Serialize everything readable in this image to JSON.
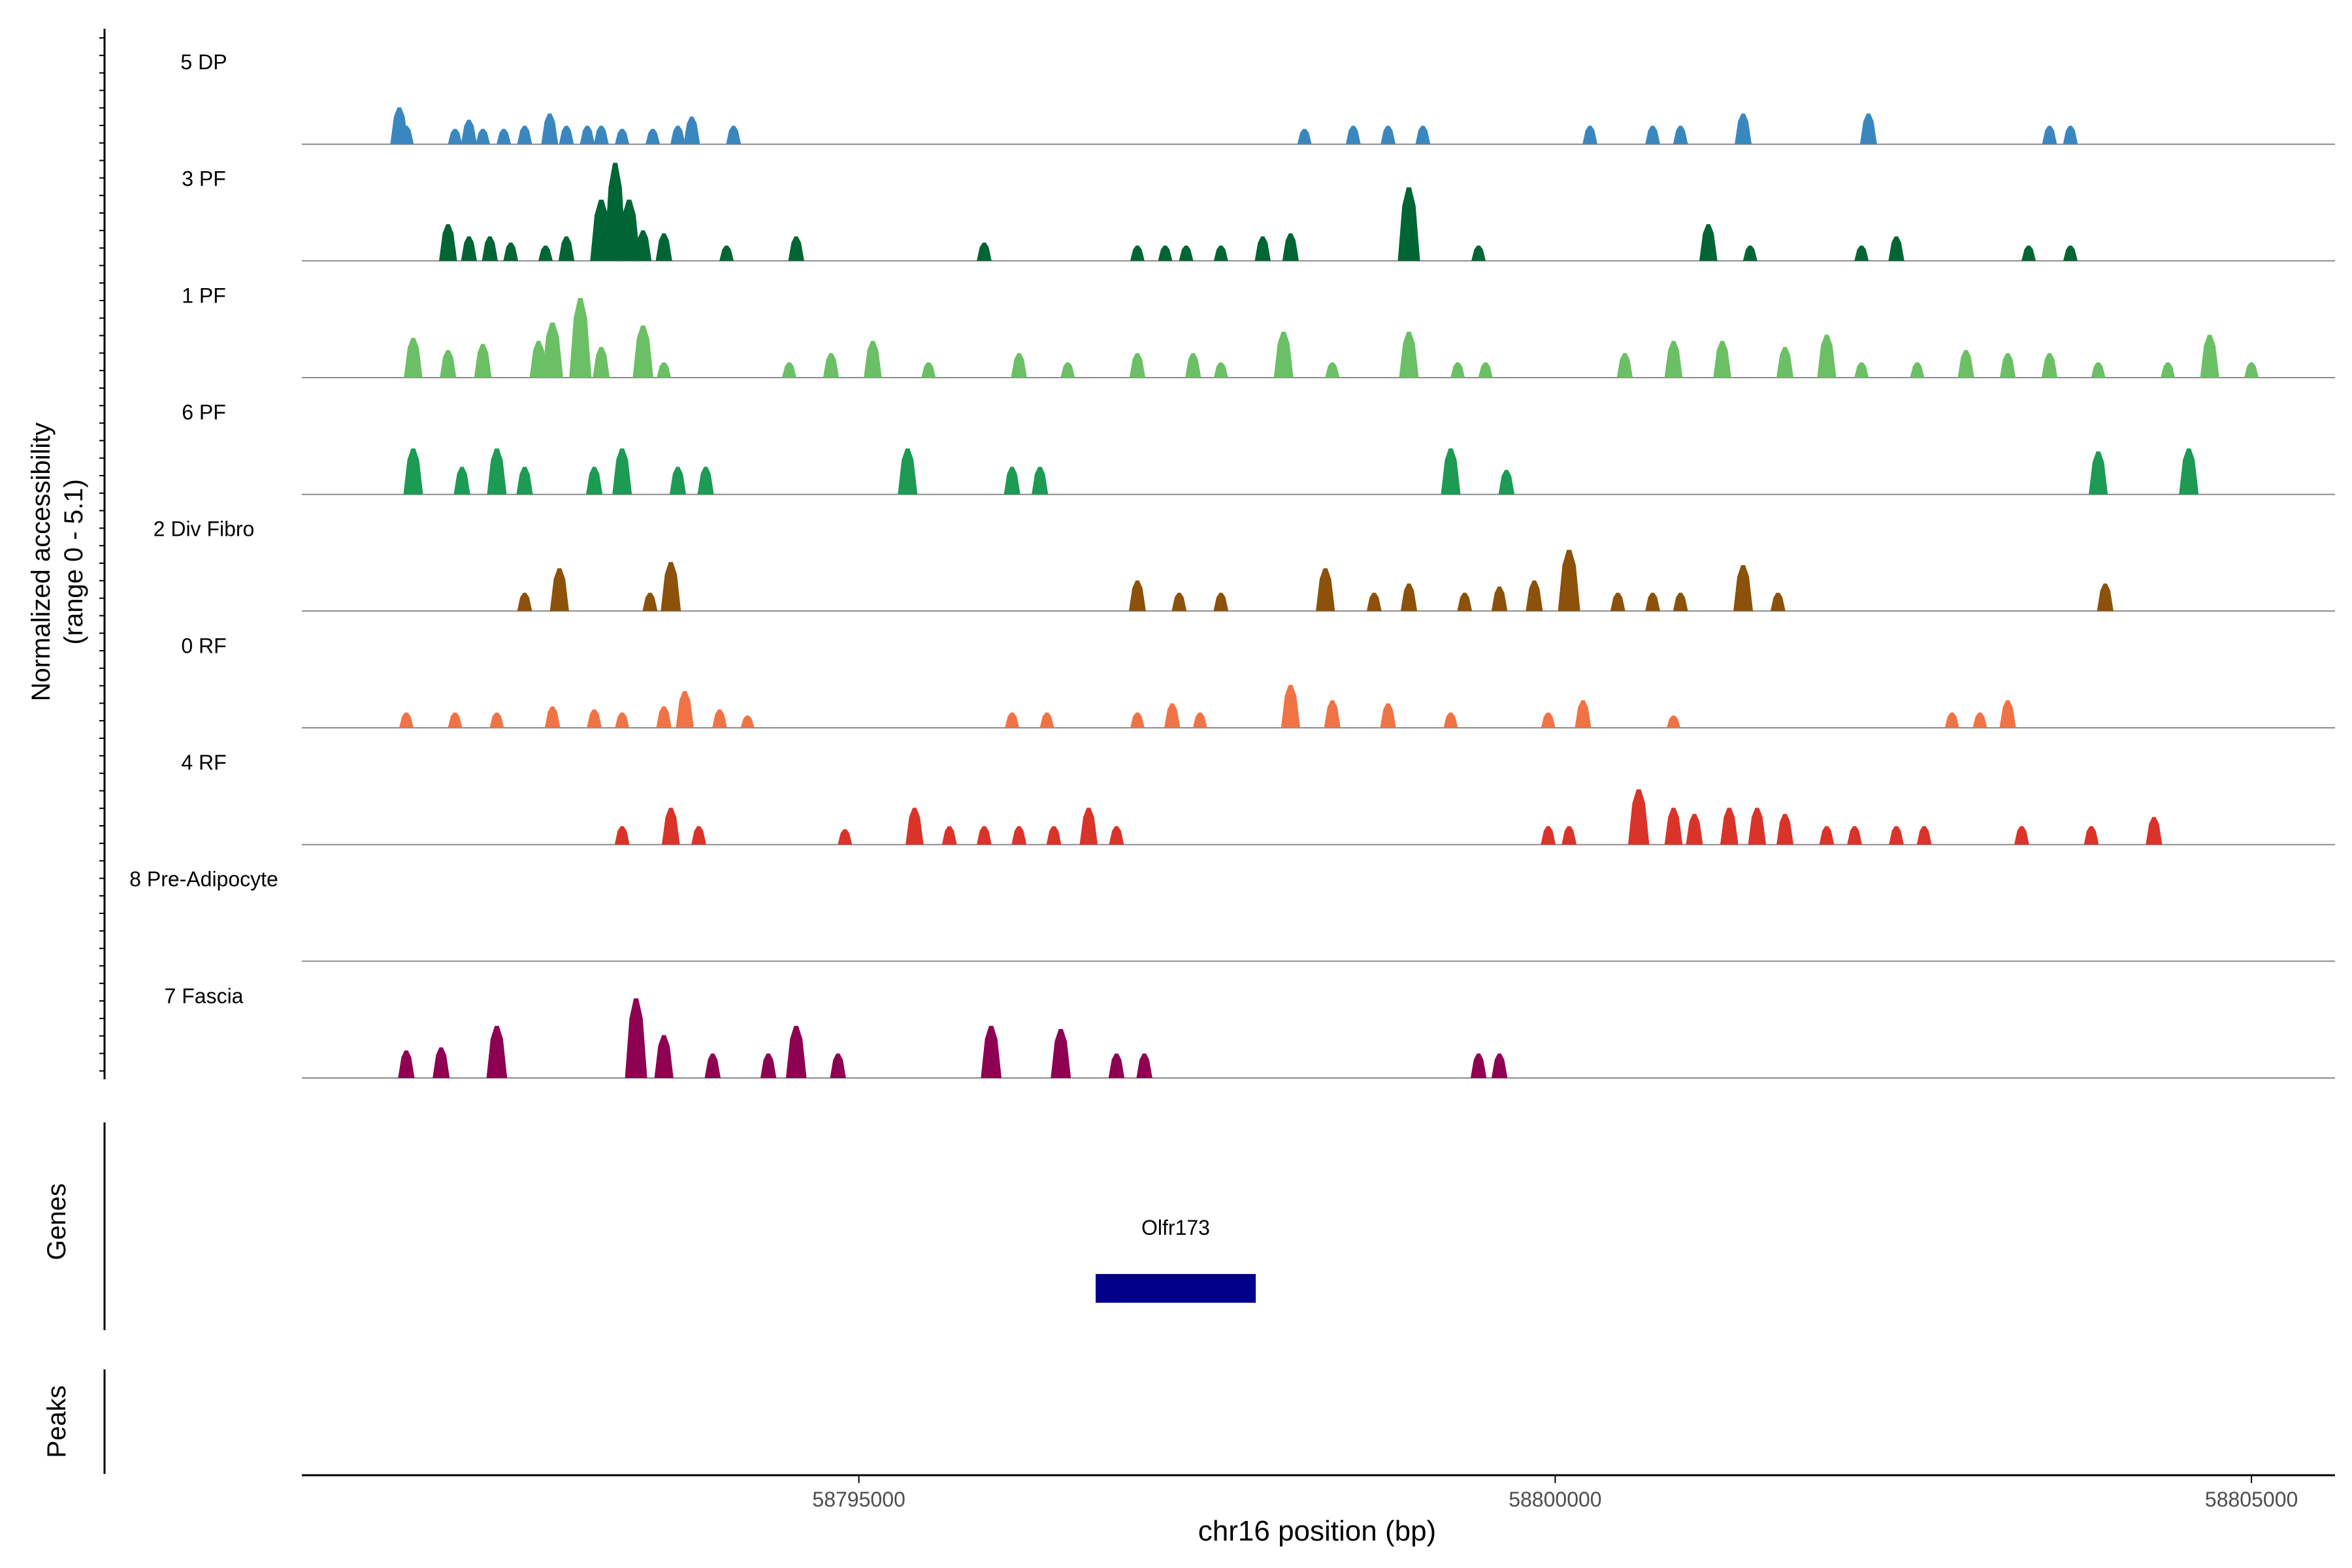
{
  "chart_data": {
    "type": "area",
    "title": "",
    "y_axis_title": "Normalized accessibility",
    "y_axis_subtitle": "(range 0 - 5.1)",
    "y_range": [
      0,
      5.1
    ],
    "genes_label": "Genes",
    "peaks_label": "Peaks",
    "x_axis": {
      "label": "chr16 position (bp)",
      "range": [
        58791000,
        58805600
      ],
      "ticks": [
        {
          "value": 58795000,
          "label": "58795000"
        },
        {
          "value": 58800000,
          "label": "58800000"
        },
        {
          "value": 58805000,
          "label": "58805000"
        }
      ]
    },
    "tracks": [
      {
        "name": "5 DP",
        "color": "#3a87c0",
        "peaks": [
          [
            58791700,
            1.2
          ],
          [
            58791750,
            0.6
          ],
          [
            58792100,
            0.5
          ],
          [
            58792200,
            0.8
          ],
          [
            58792300,
            0.5
          ],
          [
            58792450,
            0.5
          ],
          [
            58792600,
            0.6
          ],
          [
            58792780,
            1.0
          ],
          [
            58792900,
            0.6
          ],
          [
            58793050,
            0.6
          ],
          [
            58793150,
            0.6
          ],
          [
            58793300,
            0.5
          ],
          [
            58793520,
            0.5
          ],
          [
            58793700,
            0.6
          ],
          [
            58793800,
            0.9
          ],
          [
            58794100,
            0.6
          ],
          [
            58798200,
            0.5
          ],
          [
            58798550,
            0.6
          ],
          [
            58798800,
            0.6
          ],
          [
            58799050,
            0.6
          ],
          [
            58800250,
            0.6
          ],
          [
            58800700,
            0.6
          ],
          [
            58800900,
            0.6
          ],
          [
            58801350,
            1.0
          ],
          [
            58802250,
            1.0
          ],
          [
            58803550,
            0.6
          ],
          [
            58803700,
            0.6
          ]
        ]
      },
      {
        "name": "3 PF",
        "color": "#006534",
        "peaks": [
          [
            58792050,
            1.2
          ],
          [
            58792200,
            0.8
          ],
          [
            58792350,
            0.8
          ],
          [
            58792500,
            0.6
          ],
          [
            58792750,
            0.5
          ],
          [
            58792900,
            0.8
          ],
          [
            58793150,
            2.0
          ],
          [
            58793250,
            3.2
          ],
          [
            58793350,
            2.0
          ],
          [
            58793450,
            1.0
          ],
          [
            58793600,
            0.9
          ],
          [
            58794050,
            0.5
          ],
          [
            58794550,
            0.8
          ],
          [
            58795900,
            0.6
          ],
          [
            58797000,
            0.5
          ],
          [
            58797200,
            0.5
          ],
          [
            58797350,
            0.5
          ],
          [
            58797600,
            0.5
          ],
          [
            58797900,
            0.8
          ],
          [
            58798100,
            0.9
          ],
          [
            58798950,
            2.4
          ],
          [
            58799450,
            0.5
          ],
          [
            58801100,
            1.2
          ],
          [
            58801400,
            0.5
          ],
          [
            58802200,
            0.5
          ],
          [
            58802450,
            0.8
          ],
          [
            58803400,
            0.5
          ],
          [
            58803700,
            0.5
          ]
        ]
      },
      {
        "name": "1 PF",
        "color": "#6bbf65",
        "peaks": [
          [
            58791800,
            1.3
          ],
          [
            58792050,
            0.9
          ],
          [
            58792300,
            1.1
          ],
          [
            58792700,
            1.2
          ],
          [
            58792800,
            1.8
          ],
          [
            58793000,
            2.6
          ],
          [
            58793150,
            1.0
          ],
          [
            58793450,
            1.7
          ],
          [
            58793600,
            0.5
          ],
          [
            58794500,
            0.5
          ],
          [
            58794800,
            0.8
          ],
          [
            58795100,
            1.2
          ],
          [
            58795500,
            0.5
          ],
          [
            58796150,
            0.8
          ],
          [
            58796500,
            0.5
          ],
          [
            58797000,
            0.8
          ],
          [
            58797400,
            0.8
          ],
          [
            58797600,
            0.5
          ],
          [
            58798050,
            1.5
          ],
          [
            58798400,
            0.5
          ],
          [
            58798950,
            1.5
          ],
          [
            58799300,
            0.5
          ],
          [
            58799500,
            0.5
          ],
          [
            58800500,
            0.8
          ],
          [
            58800850,
            1.2
          ],
          [
            58801200,
            1.2
          ],
          [
            58801650,
            1.0
          ],
          [
            58801950,
            1.4
          ],
          [
            58802200,
            0.5
          ],
          [
            58802600,
            0.5
          ],
          [
            58802950,
            0.9
          ],
          [
            58803250,
            0.8
          ],
          [
            58803550,
            0.8
          ],
          [
            58803900,
            0.5
          ],
          [
            58804400,
            0.5
          ],
          [
            58804700,
            1.4
          ],
          [
            58805000,
            0.5
          ]
        ]
      },
      {
        "name": "6 PF",
        "color": "#1d9a53",
        "peaks": [
          [
            58791800,
            1.5
          ],
          [
            58792150,
            0.9
          ],
          [
            58792400,
            1.5
          ],
          [
            58792600,
            0.9
          ],
          [
            58793100,
            0.9
          ],
          [
            58793300,
            1.5
          ],
          [
            58793700,
            0.9
          ],
          [
            58793900,
            0.9
          ],
          [
            58795350,
            1.5
          ],
          [
            58796100,
            0.9
          ],
          [
            58796300,
            0.9
          ],
          [
            58799250,
            1.5
          ],
          [
            58799650,
            0.8
          ],
          [
            58803900,
            1.4
          ],
          [
            58804550,
            1.5
          ]
        ]
      },
      {
        "name": "2 Div Fibro",
        "color": "#8c510a",
        "peaks": [
          [
            58792600,
            0.6
          ],
          [
            58792850,
            1.4
          ],
          [
            58793500,
            0.6
          ],
          [
            58793650,
            1.6
          ],
          [
            58797000,
            1.0
          ],
          [
            58797300,
            0.6
          ],
          [
            58797600,
            0.6
          ],
          [
            58798350,
            1.4
          ],
          [
            58798700,
            0.6
          ],
          [
            58798950,
            0.9
          ],
          [
            58799350,
            0.6
          ],
          [
            58799600,
            0.8
          ],
          [
            58799850,
            1.0
          ],
          [
            58800100,
            2.0
          ],
          [
            58800450,
            0.6
          ],
          [
            58800700,
            0.6
          ],
          [
            58800900,
            0.6
          ],
          [
            58801350,
            1.5
          ],
          [
            58801600,
            0.6
          ],
          [
            58803950,
            0.9
          ]
        ]
      },
      {
        "name": "0 RF",
        "color": "#f07345",
        "peaks": [
          [
            58791750,
            0.5
          ],
          [
            58792100,
            0.5
          ],
          [
            58792400,
            0.5
          ],
          [
            58792800,
            0.7
          ],
          [
            58793100,
            0.6
          ],
          [
            58793300,
            0.5
          ],
          [
            58793600,
            0.7
          ],
          [
            58793750,
            1.2
          ],
          [
            58794000,
            0.6
          ],
          [
            58794200,
            0.4
          ],
          [
            58796100,
            0.5
          ],
          [
            58796350,
            0.5
          ],
          [
            58797000,
            0.5
          ],
          [
            58797250,
            0.8
          ],
          [
            58797450,
            0.5
          ],
          [
            58798100,
            1.4
          ],
          [
            58798400,
            0.9
          ],
          [
            58798800,
            0.8
          ],
          [
            58799250,
            0.5
          ],
          [
            58799950,
            0.5
          ],
          [
            58800200,
            0.9
          ],
          [
            58800850,
            0.4
          ],
          [
            58802850,
            0.5
          ],
          [
            58803050,
            0.5
          ],
          [
            58803250,
            0.9
          ]
        ]
      },
      {
        "name": "4 RF",
        "color": "#da3329",
        "peaks": [
          [
            58793300,
            0.6
          ],
          [
            58793650,
            1.2
          ],
          [
            58793850,
            0.6
          ],
          [
            58794900,
            0.5
          ],
          [
            58795400,
            1.2
          ],
          [
            58795650,
            0.6
          ],
          [
            58795900,
            0.6
          ],
          [
            58796150,
            0.6
          ],
          [
            58796400,
            0.6
          ],
          [
            58796650,
            1.2
          ],
          [
            58796850,
            0.6
          ],
          [
            58799950,
            0.6
          ],
          [
            58800100,
            0.6
          ],
          [
            58800600,
            1.8
          ],
          [
            58800850,
            1.2
          ],
          [
            58801000,
            1.0
          ],
          [
            58801250,
            1.2
          ],
          [
            58801450,
            1.2
          ],
          [
            58801650,
            1.0
          ],
          [
            58801950,
            0.6
          ],
          [
            58802150,
            0.6
          ],
          [
            58802450,
            0.6
          ],
          [
            58802650,
            0.6
          ],
          [
            58803350,
            0.6
          ],
          [
            58803850,
            0.6
          ],
          [
            58804300,
            0.9
          ]
        ]
      },
      {
        "name": "8 Pre-Adipocyte",
        "color": "#4d0030",
        "peaks": []
      },
      {
        "name": "7 Fascia",
        "color": "#8e0152",
        "peaks": [
          [
            58791750,
            0.9
          ],
          [
            58792000,
            1.0
          ],
          [
            58792400,
            1.7
          ],
          [
            58793400,
            2.6
          ],
          [
            58793600,
            1.4
          ],
          [
            58793950,
            0.8
          ],
          [
            58794350,
            0.8
          ],
          [
            58794550,
            1.7
          ],
          [
            58794850,
            0.8
          ],
          [
            58795950,
            1.7
          ],
          [
            58796450,
            1.6
          ],
          [
            58796850,
            0.8
          ],
          [
            58797050,
            0.8
          ],
          [
            58799450,
            0.8
          ],
          [
            58799600,
            0.8
          ]
        ]
      }
    ],
    "genes": [
      {
        "name": "Olfr173",
        "start": 58796700,
        "end": 58797850,
        "color": "#00008b"
      }
    ],
    "peaks_track": []
  }
}
